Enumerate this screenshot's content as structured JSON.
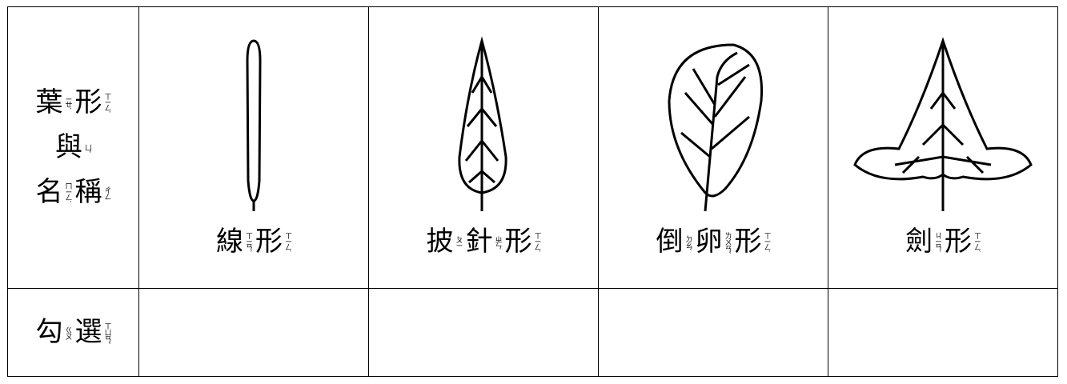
{
  "header": {
    "lines": [
      [
        {
          "char": "葉",
          "zhuyin": "ㄧㄝˋ"
        },
        {
          "char": "形",
          "zhuyin": "ㄒㄧㄥˊ"
        }
      ],
      [
        {
          "char": "與",
          "zhuyin": "ㄩˇ"
        }
      ],
      [
        {
          "char": "名",
          "zhuyin": "ㄇㄧㄥˊ"
        },
        {
          "char": "稱",
          "zhuyin": "ㄔㄥ"
        }
      ]
    ]
  },
  "leaves": [
    {
      "name": [
        {
          "char": "線",
          "zhuyin": "ㄒㄧㄢˋ"
        },
        {
          "char": "形",
          "zhuyin": "ㄒㄧㄥˊ"
        }
      ]
    },
    {
      "name": [
        {
          "char": "披",
          "zhuyin": "ㄆㄧ"
        },
        {
          "char": "針",
          "zhuyin": "ㄓㄣ"
        },
        {
          "char": "形",
          "zhuyin": "ㄒㄧㄥˊ"
        }
      ]
    },
    {
      "name": [
        {
          "char": "倒",
          "zhuyin": "ㄉㄠˇ"
        },
        {
          "char": "卵",
          "zhuyin": "ㄌㄨㄢˇ"
        },
        {
          "char": "形",
          "zhuyin": "ㄒㄧㄥˊ"
        }
      ]
    },
    {
      "name": [
        {
          "char": "劍",
          "zhuyin": "ㄐㄧㄢˋ"
        },
        {
          "char": "形",
          "zhuyin": "ㄒㄧㄥˊ"
        }
      ]
    }
  ],
  "check_row": {
    "label": [
      {
        "char": "勾",
        "zhuyin": "ㄍㄡ"
      },
      {
        "char": "選",
        "zhuyin": "ㄒㄩㄢˇ"
      }
    ]
  }
}
